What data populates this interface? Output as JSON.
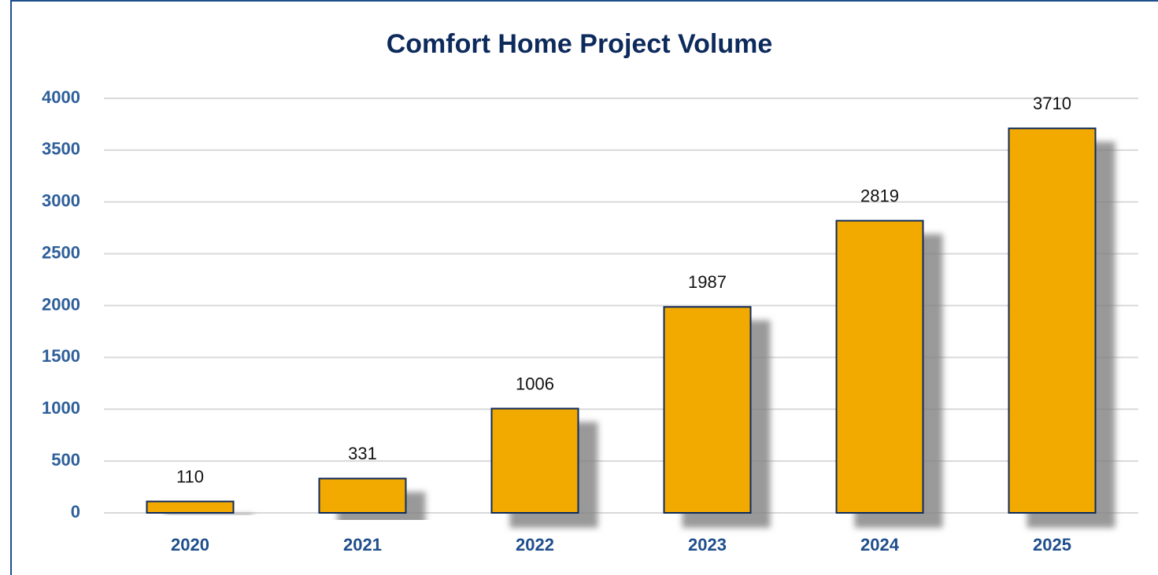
{
  "chart_data": {
    "type": "bar",
    "title": "Comfort Home Project Volume",
    "categories": [
      "2020",
      "2021",
      "2022",
      "2023",
      "2024",
      "2025"
    ],
    "values": [
      110,
      331,
      1006,
      1987,
      2819,
      3710
    ],
    "color": "#f2a900",
    "ylim": [
      0,
      4000
    ],
    "yticks": [
      0,
      500,
      1000,
      1500,
      2000,
      2500,
      3000,
      3500,
      4000
    ],
    "grid": true
  }
}
